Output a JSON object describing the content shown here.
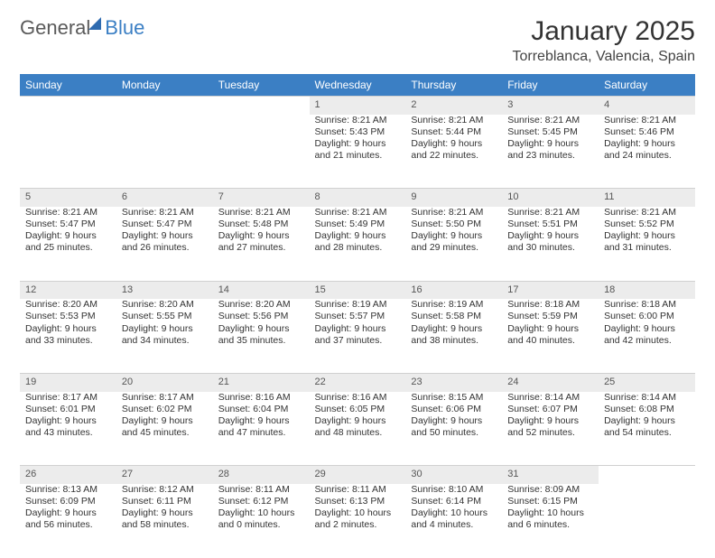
{
  "brand": {
    "part1": "General",
    "part2": "Blue"
  },
  "title": "January 2025",
  "location": "Torreblanca, Valencia, Spain",
  "colors": {
    "header_bg": "#3b7fc4",
    "header_text": "#ffffff",
    "daynum_bg": "#ececec",
    "body_text": "#333333",
    "border": "#d0d0d0"
  },
  "weekdays": [
    "Sunday",
    "Monday",
    "Tuesday",
    "Wednesday",
    "Thursday",
    "Friday",
    "Saturday"
  ],
  "weeks": [
    [
      null,
      null,
      null,
      {
        "n": "1",
        "sr": "8:21 AM",
        "ss": "5:43 PM",
        "d1": "9 hours",
        "d2": "21 minutes."
      },
      {
        "n": "2",
        "sr": "8:21 AM",
        "ss": "5:44 PM",
        "d1": "9 hours",
        "d2": "22 minutes."
      },
      {
        "n": "3",
        "sr": "8:21 AM",
        "ss": "5:45 PM",
        "d1": "9 hours",
        "d2": "23 minutes."
      },
      {
        "n": "4",
        "sr": "8:21 AM",
        "ss": "5:46 PM",
        "d1": "9 hours",
        "d2": "24 minutes."
      }
    ],
    [
      {
        "n": "5",
        "sr": "8:21 AM",
        "ss": "5:47 PM",
        "d1": "9 hours",
        "d2": "25 minutes."
      },
      {
        "n": "6",
        "sr": "8:21 AM",
        "ss": "5:47 PM",
        "d1": "9 hours",
        "d2": "26 minutes."
      },
      {
        "n": "7",
        "sr": "8:21 AM",
        "ss": "5:48 PM",
        "d1": "9 hours",
        "d2": "27 minutes."
      },
      {
        "n": "8",
        "sr": "8:21 AM",
        "ss": "5:49 PM",
        "d1": "9 hours",
        "d2": "28 minutes."
      },
      {
        "n": "9",
        "sr": "8:21 AM",
        "ss": "5:50 PM",
        "d1": "9 hours",
        "d2": "29 minutes."
      },
      {
        "n": "10",
        "sr": "8:21 AM",
        "ss": "5:51 PM",
        "d1": "9 hours",
        "d2": "30 minutes."
      },
      {
        "n": "11",
        "sr": "8:21 AM",
        "ss": "5:52 PM",
        "d1": "9 hours",
        "d2": "31 minutes."
      }
    ],
    [
      {
        "n": "12",
        "sr": "8:20 AM",
        "ss": "5:53 PM",
        "d1": "9 hours",
        "d2": "33 minutes."
      },
      {
        "n": "13",
        "sr": "8:20 AM",
        "ss": "5:55 PM",
        "d1": "9 hours",
        "d2": "34 minutes."
      },
      {
        "n": "14",
        "sr": "8:20 AM",
        "ss": "5:56 PM",
        "d1": "9 hours",
        "d2": "35 minutes."
      },
      {
        "n": "15",
        "sr": "8:19 AM",
        "ss": "5:57 PM",
        "d1": "9 hours",
        "d2": "37 minutes."
      },
      {
        "n": "16",
        "sr": "8:19 AM",
        "ss": "5:58 PM",
        "d1": "9 hours",
        "d2": "38 minutes."
      },
      {
        "n": "17",
        "sr": "8:18 AM",
        "ss": "5:59 PM",
        "d1": "9 hours",
        "d2": "40 minutes."
      },
      {
        "n": "18",
        "sr": "8:18 AM",
        "ss": "6:00 PM",
        "d1": "9 hours",
        "d2": "42 minutes."
      }
    ],
    [
      {
        "n": "19",
        "sr": "8:17 AM",
        "ss": "6:01 PM",
        "d1": "9 hours",
        "d2": "43 minutes."
      },
      {
        "n": "20",
        "sr": "8:17 AM",
        "ss": "6:02 PM",
        "d1": "9 hours",
        "d2": "45 minutes."
      },
      {
        "n": "21",
        "sr": "8:16 AM",
        "ss": "6:04 PM",
        "d1": "9 hours",
        "d2": "47 minutes."
      },
      {
        "n": "22",
        "sr": "8:16 AM",
        "ss": "6:05 PM",
        "d1": "9 hours",
        "d2": "48 minutes."
      },
      {
        "n": "23",
        "sr": "8:15 AM",
        "ss": "6:06 PM",
        "d1": "9 hours",
        "d2": "50 minutes."
      },
      {
        "n": "24",
        "sr": "8:14 AM",
        "ss": "6:07 PM",
        "d1": "9 hours",
        "d2": "52 minutes."
      },
      {
        "n": "25",
        "sr": "8:14 AM",
        "ss": "6:08 PM",
        "d1": "9 hours",
        "d2": "54 minutes."
      }
    ],
    [
      {
        "n": "26",
        "sr": "8:13 AM",
        "ss": "6:09 PM",
        "d1": "9 hours",
        "d2": "56 minutes."
      },
      {
        "n": "27",
        "sr": "8:12 AM",
        "ss": "6:11 PM",
        "d1": "9 hours",
        "d2": "58 minutes."
      },
      {
        "n": "28",
        "sr": "8:11 AM",
        "ss": "6:12 PM",
        "d1": "10 hours",
        "d2": "0 minutes."
      },
      {
        "n": "29",
        "sr": "8:11 AM",
        "ss": "6:13 PM",
        "d1": "10 hours",
        "d2": "2 minutes."
      },
      {
        "n": "30",
        "sr": "8:10 AM",
        "ss": "6:14 PM",
        "d1": "10 hours",
        "d2": "4 minutes."
      },
      {
        "n": "31",
        "sr": "8:09 AM",
        "ss": "6:15 PM",
        "d1": "10 hours",
        "d2": "6 minutes."
      },
      null
    ]
  ],
  "labels": {
    "sunrise": "Sunrise:",
    "sunset": "Sunset:",
    "daylight": "Daylight:",
    "and": "and"
  }
}
